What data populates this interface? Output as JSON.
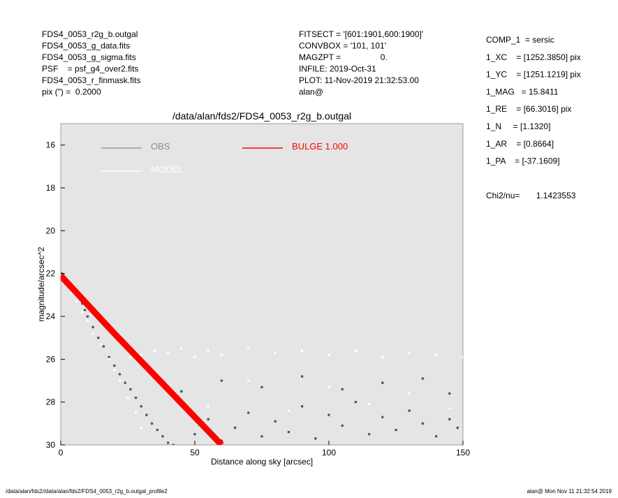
{
  "chart_data": {
    "type": "scatter",
    "title": "/data/alan/fds2/FDS4_0053_r2g_b.outgal",
    "x_label": "Distance along sky [arcsec]",
    "y_label": "magnitude/arcsec^2",
    "xlim": [
      0,
      150
    ],
    "xticks": [
      0,
      50,
      100,
      150
    ],
    "ylim": [
      15,
      30
    ],
    "yticks": [
      16,
      18,
      20,
      22,
      24,
      26,
      28,
      30
    ],
    "y_inverted": true,
    "background": "#e5e5e5",
    "header_left": [
      "FDS4_0053_r2g_b.outgal",
      "FDS4_0053_g_data.fits",
      "FDS4_0053_g_sigma.fits",
      "PSF    = psf_g4_over2.fits",
      "FDS4_0053_r_finmask.fits",
      "pix (\") =  0.2000"
    ],
    "header_middle": [
      "FITSECT = '[601:1901,600:1900]'",
      "CONVBOX = '101, 101'",
      "MAGZPT =                 0.",
      "INFILE: 2019-Oct-31",
      "PLOT: 11-Nov-2019 21:32:53.00",
      "alan@"
    ],
    "header_right": [
      "COMP_1  = sersic",
      "1_XC    = [1252.3850] pix",
      "1_YC    = [1251.1219] pix",
      "1_MAG   = 15.8411",
      "1_RE    = [66.3016] pix",
      "1_N     = [1.1320]",
      "1_AR    = [0.8664]",
      "1_PA    = [-37.1609]",
      "Chi2/nu=       1.1423553"
    ],
    "footer_left": "/data/alan/fds2//data/alan/fds2/FDS4_0053_r2g_b.outgal_profile2",
    "footer_right": "alan@  Mon Nov 11 21:32:54 2019",
    "series": [
      {
        "name": "OBS",
        "color": "#555555",
        "legend_color": "#8c8c8c",
        "marker": "points",
        "x": [
          0.5,
          1,
          2,
          3,
          4,
          5,
          6,
          7,
          8,
          9,
          10,
          12,
          14,
          16,
          18,
          20,
          22,
          24,
          26,
          28,
          30,
          32,
          34,
          36,
          38,
          40,
          42,
          50,
          55,
          60,
          65,
          70,
          75,
          80,
          85,
          90,
          95,
          100,
          105,
          110,
          115,
          120,
          125,
          130,
          135,
          140,
          145,
          148,
          45,
          60,
          75,
          90,
          105,
          120,
          135,
          145
        ],
        "values": [
          22.0,
          22.2,
          22.3,
          22.4,
          22.5,
          22.7,
          22.9,
          23.1,
          23.4,
          23.7,
          24.0,
          24.5,
          25.0,
          25.4,
          25.9,
          26.3,
          26.7,
          27.1,
          27.4,
          27.8,
          28.2,
          28.6,
          29.0,
          29.3,
          29.6,
          29.9,
          30.0,
          29.5,
          28.8,
          29.8,
          29.2,
          28.5,
          29.6,
          28.9,
          29.4,
          28.2,
          29.7,
          28.6,
          29.1,
          28.0,
          29.5,
          28.7,
          29.3,
          28.4,
          29.0,
          29.6,
          28.8,
          29.2,
          27.5,
          27.0,
          27.3,
          26.8,
          27.4,
          27.1,
          26.9,
          27.6
        ]
      },
      {
        "name": "MODEL",
        "color": "#ffffff",
        "legend_color": "#ffffff",
        "marker": "points",
        "x": [
          0,
          2,
          4,
          6,
          8,
          10,
          12,
          15,
          18,
          20,
          22,
          25,
          28,
          30,
          26,
          30,
          35,
          40,
          45,
          50,
          55,
          60,
          70,
          80,
          90,
          100,
          110,
          120,
          130,
          140,
          150,
          40,
          55,
          70,
          85,
          100,
          115,
          130,
          145
        ],
        "values": [
          22.1,
          22.5,
          22.9,
          23.3,
          23.8,
          24.2,
          24.8,
          25.3,
          26.0,
          26.5,
          27.0,
          27.8,
          28.5,
          29.2,
          25.9,
          25.8,
          25.6,
          25.7,
          25.5,
          25.9,
          25.6,
          25.8,
          25.5,
          25.7,
          25.6,
          25.8,
          25.6,
          25.9,
          25.7,
          25.8,
          25.9,
          27.5,
          28.2,
          27.0,
          28.4,
          27.3,
          28.1,
          27.6,
          28.3
        ]
      },
      {
        "name": "BULGE  1.000",
        "color": "#ff0000",
        "legend_color": "#ff0000",
        "marker": "band",
        "x": [
          0,
          20,
          40,
          60
        ],
        "values": [
          22.1,
          24.8,
          27.4,
          30.0
        ]
      }
    ]
  }
}
